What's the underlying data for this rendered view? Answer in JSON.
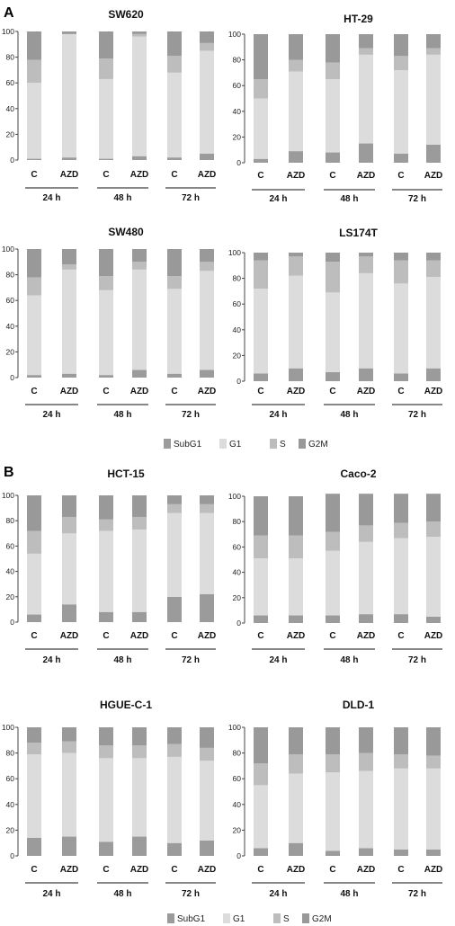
{
  "panels": [
    {
      "label": "A"
    },
    {
      "label": "B"
    }
  ],
  "legend": {
    "items": [
      {
        "name": "SubG1",
        "color": "#9b9b9b"
      },
      {
        "name": "G1",
        "color": "#dcdcdc"
      },
      {
        "name": "S",
        "color": "#bdbdbd"
      },
      {
        "name": "G2M",
        "color": "#999999"
      }
    ]
  },
  "chart_data": [
    {
      "type": "bar",
      "stacked": true,
      "title": "SW620",
      "panel": "A",
      "categories": [
        "C",
        "AZD",
        "C",
        "AZD",
        "C",
        "AZD"
      ],
      "groups": [
        "24 h",
        "48 h",
        "72 h"
      ],
      "yticks": [
        0,
        20,
        40,
        60,
        80,
        100
      ],
      "ylim": [
        0,
        100
      ],
      "series": [
        {
          "name": "SubG1",
          "values": [
            1,
            2,
            1,
            3,
            2,
            5
          ]
        },
        {
          "name": "G1",
          "values": [
            59,
            96,
            62,
            93,
            66,
            80
          ]
        },
        {
          "name": "S",
          "values": [
            18,
            0,
            16,
            2,
            13,
            6
          ]
        },
        {
          "name": "G2M",
          "values": [
            22,
            2,
            21,
            2,
            19,
            9
          ]
        }
      ]
    },
    {
      "type": "bar",
      "stacked": true,
      "title": "HT-29",
      "panel": "A",
      "categories": [
        "C",
        "AZD",
        "C",
        "AZD",
        "C",
        "AZD"
      ],
      "groups": [
        "24 h",
        "48 h",
        "72 h"
      ],
      "yticks": [
        0,
        20,
        40,
        60,
        80,
        100
      ],
      "ylim": [
        0,
        100
      ],
      "series": [
        {
          "name": "SubG1",
          "values": [
            3,
            9,
            8,
            15,
            7,
            14
          ]
        },
        {
          "name": "G1",
          "values": [
            47,
            62,
            57,
            69,
            65,
            70
          ]
        },
        {
          "name": "S",
          "values": [
            15,
            9,
            13,
            5,
            11,
            5
          ]
        },
        {
          "name": "G2M",
          "values": [
            35,
            20,
            22,
            11,
            17,
            11
          ]
        }
      ]
    },
    {
      "type": "bar",
      "stacked": true,
      "title": "SW480",
      "panel": "A",
      "categories": [
        "C",
        "AZD",
        "C",
        "AZD",
        "C",
        "AZD"
      ],
      "groups": [
        "24 h",
        "48 h",
        "72 h"
      ],
      "yticks": [
        0,
        20,
        40,
        60,
        80,
        100
      ],
      "ylim": [
        0,
        100
      ],
      "series": [
        {
          "name": "SubG1",
          "values": [
            2,
            3,
            2,
            6,
            3,
            6
          ]
        },
        {
          "name": "G1",
          "values": [
            62,
            81,
            66,
            78,
            66,
            77
          ]
        },
        {
          "name": "S",
          "values": [
            14,
            4,
            11,
            6,
            10,
            7
          ]
        },
        {
          "name": "G2M",
          "values": [
            22,
            12,
            21,
            10,
            21,
            10
          ]
        }
      ]
    },
    {
      "type": "bar",
      "stacked": true,
      "title": "LS174T",
      "panel": "A",
      "categories": [
        "C",
        "AZD",
        "C",
        "AZD",
        "C",
        "AZD"
      ],
      "groups": [
        "24 h",
        "48 h",
        "72 h"
      ],
      "yticks": [
        0,
        20,
        40,
        60,
        80,
        100
      ],
      "ylim": [
        0,
        100
      ],
      "series": [
        {
          "name": "SubG1",
          "values": [
            6,
            10,
            7,
            10,
            6,
            10
          ]
        },
        {
          "name": "G1",
          "values": [
            66,
            72,
            62,
            74,
            70,
            71
          ]
        },
        {
          "name": "S",
          "values": [
            22,
            15,
            24,
            13,
            18,
            13
          ]
        },
        {
          "name": "G2M",
          "values": [
            6,
            3,
            7,
            3,
            6,
            6
          ]
        }
      ]
    },
    {
      "type": "bar",
      "stacked": true,
      "title": "HCT-15",
      "panel": "B",
      "categories": [
        "C",
        "AZD",
        "C",
        "AZD",
        "C",
        "AZD"
      ],
      "groups": [
        "24 h",
        "48 h",
        "72 h"
      ],
      "yticks": [
        0,
        20,
        40,
        60,
        80,
        100
      ],
      "ylim": [
        0,
        100
      ],
      "series": [
        {
          "name": "SubG1",
          "values": [
            6,
            14,
            8,
            8,
            20,
            22
          ]
        },
        {
          "name": "G1",
          "values": [
            48,
            56,
            64,
            65,
            66,
            64
          ]
        },
        {
          "name": "S",
          "values": [
            18,
            13,
            9,
            10,
            7,
            7
          ]
        },
        {
          "name": "G2M",
          "values": [
            28,
            17,
            19,
            17,
            7,
            7
          ]
        }
      ]
    },
    {
      "type": "bar",
      "stacked": true,
      "title": "Caco-2",
      "panel": "B",
      "categories": [
        "C",
        "AZD",
        "C",
        "AZD",
        "C",
        "AZD"
      ],
      "groups": [
        "24 h",
        "48 h",
        "72 h"
      ],
      "yticks": [
        0,
        20,
        40,
        60,
        80,
        100
      ],
      "ylim": [
        0,
        100
      ],
      "series": [
        {
          "name": "SubG1",
          "values": [
            6,
            6,
            6,
            7,
            7,
            5
          ]
        },
        {
          "name": "G1",
          "values": [
            45,
            45,
            51,
            57,
            60,
            63
          ]
        },
        {
          "name": "S",
          "values": [
            18,
            18,
            15,
            13,
            12,
            12
          ]
        },
        {
          "name": "G2M",
          "values": [
            31,
            31,
            30,
            25,
            23,
            22
          ]
        }
      ]
    },
    {
      "type": "bar",
      "stacked": true,
      "title": "HGUE-C-1",
      "panel": "B",
      "categories": [
        "C",
        "AZD",
        "C",
        "AZD",
        "C",
        "AZD"
      ],
      "groups": [
        "24 h",
        "48 h",
        "72 h"
      ],
      "yticks": [
        0,
        20,
        40,
        60,
        80,
        100
      ],
      "ylim": [
        0,
        100
      ],
      "series": [
        {
          "name": "SubG1",
          "values": [
            14,
            15,
            11,
            15,
            10,
            12
          ]
        },
        {
          "name": "G1",
          "values": [
            65,
            65,
            65,
            61,
            67,
            62
          ]
        },
        {
          "name": "S",
          "values": [
            9,
            9,
            10,
            10,
            10,
            10
          ]
        },
        {
          "name": "G2M",
          "values": [
            12,
            11,
            14,
            14,
            13,
            16
          ]
        }
      ]
    },
    {
      "type": "bar",
      "stacked": true,
      "title": "DLD-1",
      "panel": "B",
      "categories": [
        "C",
        "AZD",
        "C",
        "AZD",
        "C",
        "AZD"
      ],
      "groups": [
        "24 h",
        "48 h",
        "72 h"
      ],
      "yticks": [
        0,
        20,
        40,
        60,
        80,
        100
      ],
      "ylim": [
        0,
        100
      ],
      "series": [
        {
          "name": "SubG1",
          "values": [
            6,
            10,
            4,
            6,
            5,
            5
          ]
        },
        {
          "name": "G1",
          "values": [
            49,
            54,
            61,
            60,
            63,
            63
          ]
        },
        {
          "name": "S",
          "values": [
            17,
            15,
            14,
            14,
            11,
            10
          ]
        },
        {
          "name": "G2M",
          "values": [
            28,
            21,
            21,
            20,
            21,
            22
          ]
        }
      ]
    }
  ]
}
